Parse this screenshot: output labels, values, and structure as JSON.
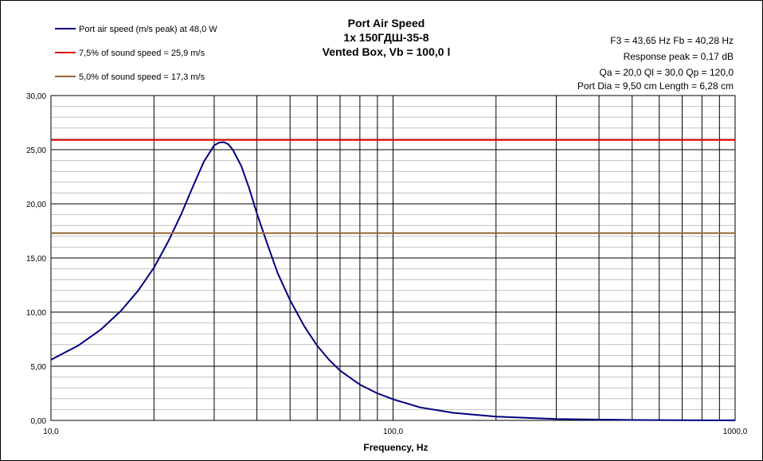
{
  "chart_data": {
    "type": "line",
    "title": [
      "Port Air  Speed",
      "1x 150ГДШ-35-8",
      "Vented Box, Vb = 100,0 l"
    ],
    "info": [
      "F3 = 43,65  Hz   Fb = 40,28  Hz",
      "Response peak = 0,17 dB",
      "Qa = 20,0   Ql = 30,0   Qp = 120,0",
      "Port Dia = 9,50  cm   Length = 6,28  cm"
    ],
    "xlabel": "Frequency, Hz",
    "ylabel": "",
    "xscale": "log",
    "xlim": [
      10,
      1000
    ],
    "ylim": [
      0,
      30
    ],
    "grid": true,
    "legend_position": "top-left",
    "x_tick_labels": [
      "10,0",
      "100,0",
      "1000,0"
    ],
    "y_tick_labels": [
      "0,00",
      "5,00",
      "10,00",
      "15,00",
      "20,00",
      "25,00",
      "30,00"
    ],
    "series": [
      {
        "name": "Port air speed (m/s peak) at 48,0 W",
        "color": "#000080",
        "x": [
          10,
          12,
          14,
          16,
          18,
          20,
          22,
          24,
          26,
          28,
          30,
          31,
          32,
          33,
          34,
          36,
          38,
          40,
          43,
          46,
          50,
          55,
          60,
          65,
          70,
          80,
          90,
          100,
          120,
          150,
          200,
          300,
          500,
          700,
          1000
        ],
        "values": [
          5.6,
          6.9,
          8.4,
          10.1,
          12.0,
          14.1,
          16.5,
          19.0,
          21.6,
          23.9,
          25.4,
          25.65,
          25.7,
          25.5,
          25.0,
          23.5,
          21.4,
          19.1,
          16.2,
          13.6,
          11.1,
          8.7,
          6.9,
          5.6,
          4.6,
          3.3,
          2.5,
          1.95,
          1.2,
          0.7,
          0.35,
          0.13,
          0.04,
          0.015,
          0.005
        ]
      },
      {
        "name": "7,5% of sound speed = 25,9 m/s",
        "color": "#e00000",
        "x": [
          10,
          1000
        ],
        "values": [
          25.9,
          25.9
        ]
      },
      {
        "name": "5,0% of sound speed = 17,3 m/s",
        "color": "#996633",
        "x": [
          10,
          1000
        ],
        "values": [
          17.3,
          17.3
        ]
      }
    ]
  }
}
